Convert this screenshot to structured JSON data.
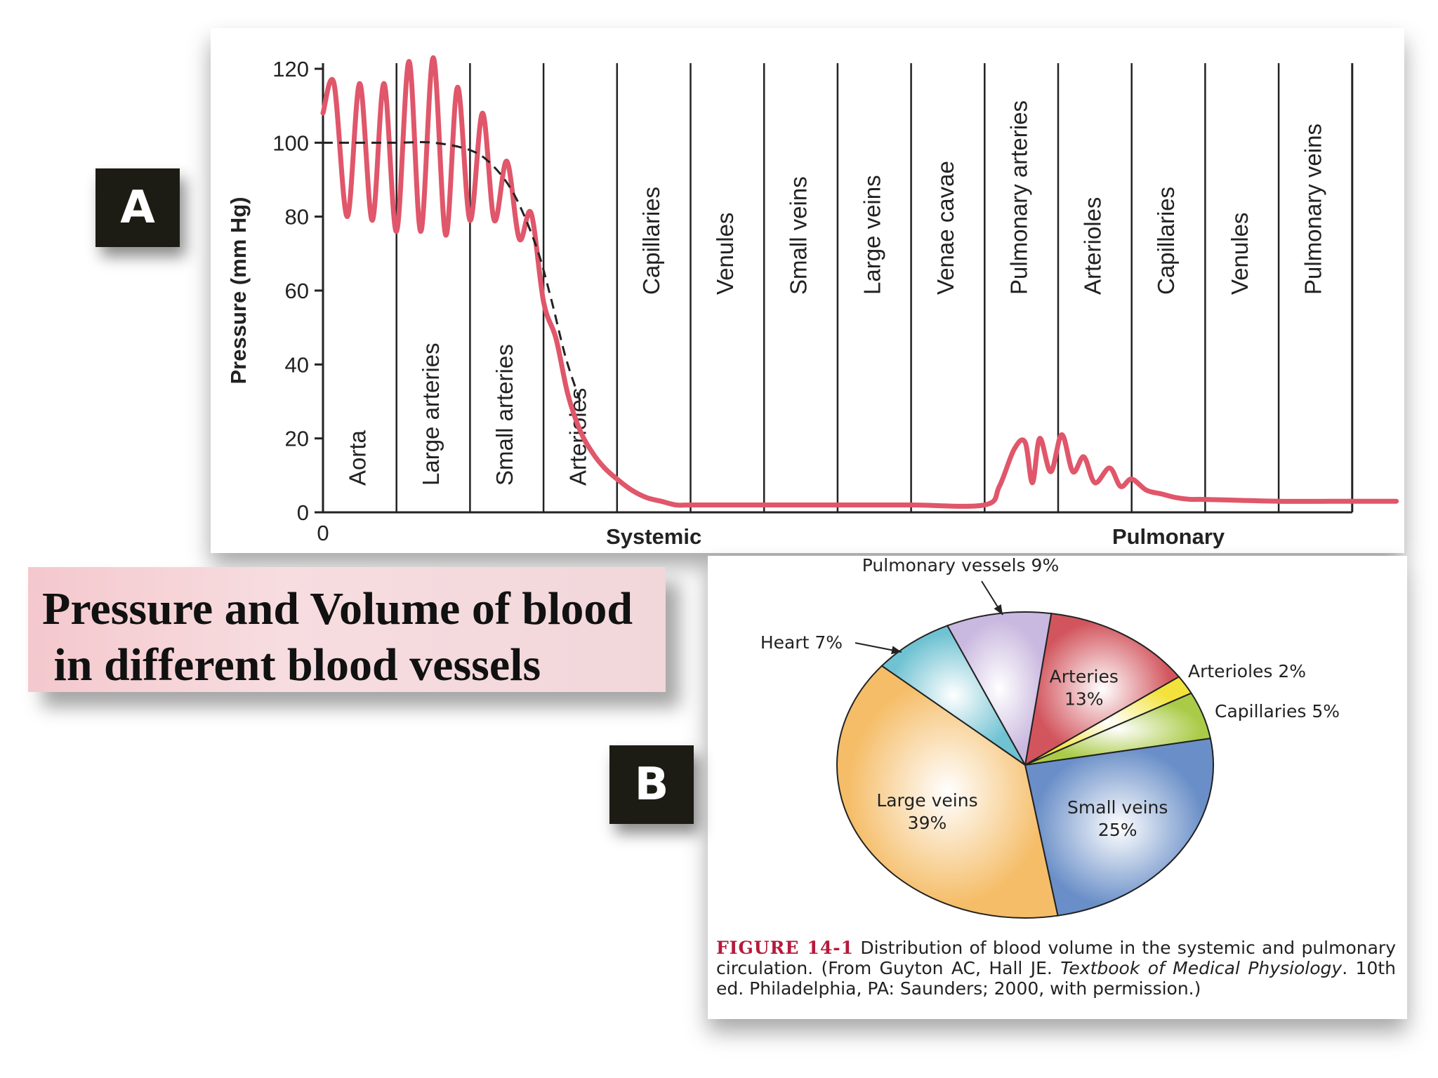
{
  "panel_a_letter": "A",
  "panel_b_letter": "B",
  "title": "Pressure and Volume of blood\n in different blood vessels",
  "chart_data": [
    {
      "type": "line",
      "ylabel": "Pressure (mm Hg)",
      "ylim": [
        0,
        120
      ],
      "yticks": [
        0,
        20,
        40,
        60,
        80,
        100,
        120
      ],
      "x_origin_label": "0",
      "segments": [
        "Aorta",
        "Large arteries",
        "Small arteries",
        "Arterioles",
        "Capillaries",
        "Venules",
        "Small veins",
        "Large veins",
        "Venae cavae",
        "Pulmonary arteries",
        "Arterioles",
        "Capillaries",
        "Venules",
        "Pulmonary veins"
      ],
      "circuits": [
        {
          "label": "Systemic",
          "segments": [
            0,
            8
          ]
        },
        {
          "label": "Pulmonary",
          "segments": [
            9,
            13
          ]
        }
      ],
      "series": [
        {
          "kind": "pulsatile",
          "color": "#e0566a",
          "x": [
            0,
            0.15,
            0.33,
            0.5,
            0.67,
            0.83,
            1.0,
            1.17,
            1.33,
            1.5,
            1.67,
            1.83,
            2.0,
            2.17,
            2.33,
            2.5,
            2.67,
            2.83,
            3.0,
            3.17,
            3.33,
            3.5,
            3.67,
            3.83,
            4.0,
            4.2,
            4.4,
            4.6,
            4.8,
            5.0,
            5.3,
            5.6,
            6.0,
            7.0,
            8.0,
            9.0,
            9.2,
            9.4,
            9.55,
            9.65,
            9.75,
            9.9,
            10.05,
            10.2,
            10.35,
            10.5,
            10.7,
            10.85,
            11.0,
            11.2,
            11.4,
            11.6,
            11.8,
            12.0,
            13.0,
            14.0,
            14.6
          ],
          "y": [
            108,
            116,
            80,
            116,
            79,
            116,
            76,
            122,
            76,
            123,
            75,
            115,
            79,
            108,
            79,
            95,
            74,
            81,
            57,
            47,
            32,
            22,
            16,
            12,
            9,
            6,
            4,
            3,
            2,
            2,
            2,
            2,
            2,
            2,
            2,
            2,
            7,
            17,
            19,
            8,
            20,
            11,
            21,
            11,
            15,
            8,
            12,
            7,
            9,
            6,
            5,
            4,
            3.5,
            3.5,
            3,
            3,
            3
          ]
        },
        {
          "kind": "mean (dashed)",
          "color": "#222222",
          "x": [
            0,
            0.5,
            1.0,
            1.5,
            2.0,
            2.3,
            2.6,
            2.9,
            3.1,
            3.3,
            3.5
          ],
          "y": [
            100,
            100,
            100,
            100,
            98,
            94,
            86,
            72,
            58,
            42,
            30
          ]
        }
      ]
    },
    {
      "type": "pie",
      "slices": [
        {
          "label": "Arteries",
          "value": 13,
          "text": "13%",
          "color": "#d2555d"
        },
        {
          "label": "Arterioles",
          "value": 2,
          "text": "Arterioles 2%",
          "color": "#f3e23c"
        },
        {
          "label": "Capillaries",
          "value": 5,
          "text": "Capillaries 5%",
          "color": "#aacb48"
        },
        {
          "label": "Small veins",
          "value": 25,
          "text": "25%",
          "color": "#6a8fc8"
        },
        {
          "label": "Large veins",
          "value": 39,
          "text": "39%",
          "color": "#f5bd68"
        },
        {
          "label": "Heart",
          "value": 7,
          "text": "Heart 7%",
          "color": "#6fc2d2"
        },
        {
          "label": "Pulmonary vessels",
          "value": 9,
          "text": "Pulmonary vessels 9%",
          "color": "#c9b8df"
        }
      ]
    }
  ],
  "caption": {
    "figure": "FIGURE 14-1",
    "text1": " Distribution of blood volume in the systemic and pulmonary circulation. (From Guyton AC, Hall JE. ",
    "italic": "Textbook of Medical Physiology",
    "text2": ". 10th ed. Philadelphia, PA: Saunders; 2000, with permission.)"
  }
}
